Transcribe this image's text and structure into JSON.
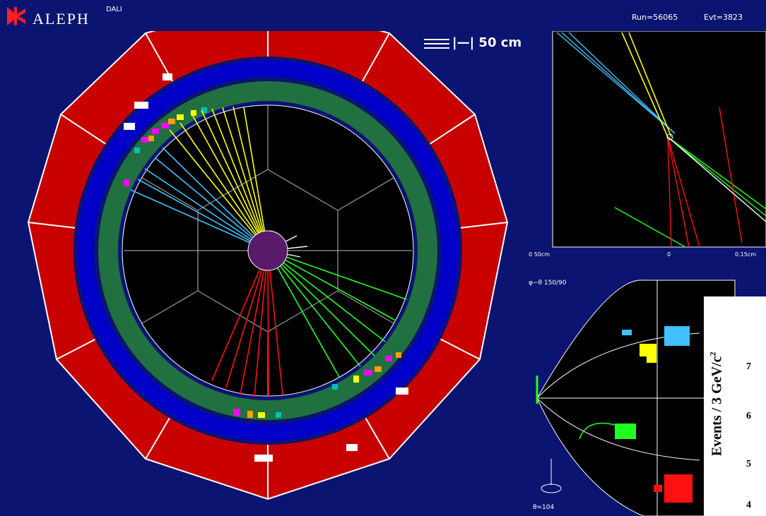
{
  "header": {
    "brand": "ALEPH",
    "brand_sup": "DALI",
    "run_label": "Run=56065",
    "event_label": "Evt=3823"
  },
  "main_panel": {
    "scale_label": "|—| 50 cm"
  },
  "top_right_panel": {
    "tick_left": "0 50cm",
    "tick_mid": "0",
    "tick_right": "0.15cm"
  },
  "bottom_right_panel": {
    "title": "φ−θ 150/90",
    "footer": "θ=104"
  },
  "axis": {
    "label": "Events / 3 GeV/c",
    "label_sup": "2",
    "ticks": [
      "7",
      "6",
      "5",
      "4"
    ]
  },
  "colors": {
    "background": "#0b1470",
    "hcal": "#c80000",
    "ecal": "#0000c8",
    "inner_ring": "#207040",
    "track_yellow": "#ffff00",
    "track_cyan": "#40c0ff",
    "track_green": "#20ff20",
    "track_red": "#ff1010"
  }
}
